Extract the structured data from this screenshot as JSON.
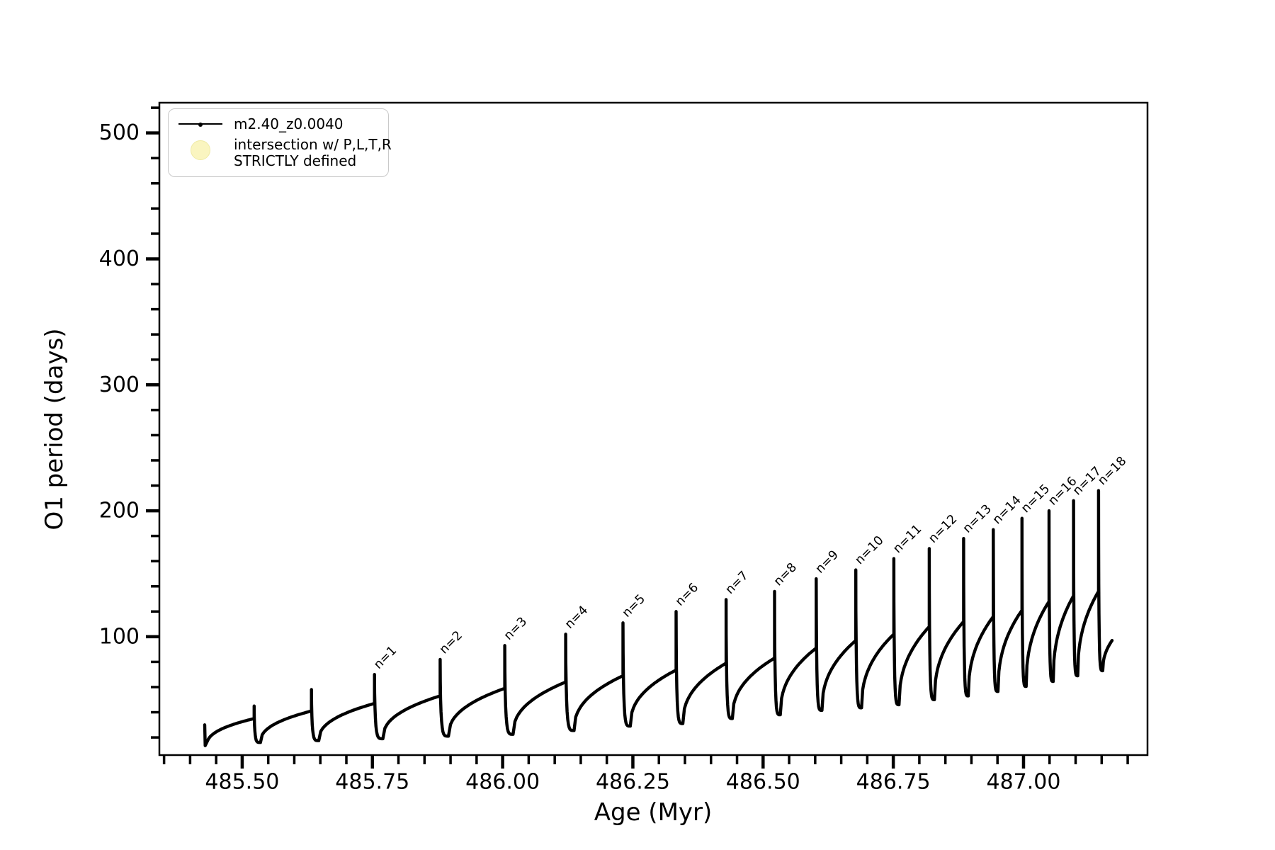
{
  "figure": {
    "background": "#ffffff",
    "line_color": "#000000",
    "frame_color": "#000000",
    "legend_marker_color": "#faf5c0"
  },
  "legend": {
    "series_label": "m2.40_z0.0040",
    "intersection_label_line1": "intersection w/ P,L,T,R",
    "intersection_label_line2": "STRICTLY defined"
  },
  "chart_data": {
    "type": "line",
    "series_name": "m2.40_z0.0040",
    "title": "",
    "xlabel": "Age (Myr)",
    "ylabel": "O1 period (days)",
    "xlim": [
      485.341,
      487.238
    ],
    "ylim": [
      6,
      524
    ],
    "grid": false,
    "legend_position": "upper-left",
    "x_ticks": {
      "values": [
        485.5,
        485.75,
        486.0,
        486.25,
        486.5,
        486.75,
        487.0
      ],
      "labels": [
        "485.50",
        "485.75",
        "486.00",
        "486.25",
        "486.50",
        "486.75",
        "487.00"
      ],
      "minor_step": 0.05
    },
    "y_ticks": {
      "values": [
        100,
        200,
        300,
        400,
        500
      ],
      "labels": [
        "100",
        "200",
        "300",
        "400",
        "500"
      ],
      "minor_step": 20
    },
    "start": {
      "age": 485.428,
      "top": 30,
      "min": 13.5,
      "min_age": 485.432
    },
    "cycles": [
      {
        "label": "",
        "spike_age": 485.523,
        "shoulder": 35,
        "peak": 45,
        "min": 16,
        "min_age": 485.535
      },
      {
        "label": "",
        "spike_age": 485.633,
        "shoulder": 41,
        "peak": 58,
        "min": 17.5,
        "min_age": 485.647
      },
      {
        "label": "n=1",
        "spike_age": 485.754,
        "shoulder": 47,
        "peak": 70,
        "min": 19,
        "min_age": 485.77
      },
      {
        "label": "n=2",
        "spike_age": 485.88,
        "shoulder": 53,
        "peak": 82,
        "min": 21,
        "min_age": 485.896
      },
      {
        "label": "n=3",
        "spike_age": 486.004,
        "shoulder": 59,
        "peak": 93,
        "min": 22.5,
        "min_age": 486.02
      },
      {
        "label": "n=4",
        "spike_age": 486.121,
        "shoulder": 64,
        "peak": 102,
        "min": 25.5,
        "min_age": 486.137
      },
      {
        "label": "n=5",
        "spike_age": 486.231,
        "shoulder": 69,
        "peak": 111,
        "min": 29,
        "min_age": 486.245
      },
      {
        "label": "n=6",
        "spike_age": 486.333,
        "shoulder": 73.5,
        "peak": 120,
        "min": 31,
        "min_age": 486.346
      },
      {
        "label": "n=7",
        "spike_age": 486.429,
        "shoulder": 79,
        "peak": 129.5,
        "min": 35,
        "min_age": 486.441
      },
      {
        "label": "n=8",
        "spike_age": 486.522,
        "shoulder": 83,
        "peak": 136,
        "min": 38,
        "min_age": 486.533
      },
      {
        "label": "n=9",
        "spike_age": 486.602,
        "shoulder": 91,
        "peak": 146,
        "min": 41.5,
        "min_age": 486.613
      },
      {
        "label": "n=10",
        "spike_age": 486.678,
        "shoulder": 97,
        "peak": 153,
        "min": 43.5,
        "min_age": 486.689
      },
      {
        "label": "n=11",
        "spike_age": 486.751,
        "shoulder": 102,
        "peak": 162,
        "min": 46,
        "min_age": 486.761
      },
      {
        "label": "n=12",
        "spike_age": 486.819,
        "shoulder": 108,
        "peak": 170,
        "min": 50,
        "min_age": 486.829
      },
      {
        "label": "n=13",
        "spike_age": 486.885,
        "shoulder": 112,
        "peak": 178,
        "min": 53,
        "min_age": 486.894
      },
      {
        "label": "n=14",
        "spike_age": 486.942,
        "shoulder": 116,
        "peak": 185,
        "min": 56.5,
        "min_age": 486.951
      },
      {
        "label": "n=15",
        "spike_age": 486.997,
        "shoulder": 121,
        "peak": 194,
        "min": 60.5,
        "min_age": 487.005
      },
      {
        "label": "n=16",
        "spike_age": 487.049,
        "shoulder": 128,
        "peak": 200,
        "min": 64.5,
        "min_age": 487.057
      },
      {
        "label": "n=17",
        "spike_age": 487.096,
        "shoulder": 132.5,
        "peak": 208,
        "min": 69,
        "min_age": 487.104
      },
      {
        "label": "n=18",
        "spike_age": 487.144,
        "shoulder": 136,
        "peak": 216,
        "min": 73,
        "min_age": 487.152
      }
    ],
    "tail": {
      "end_age": 487.17,
      "end_value": 97
    }
  }
}
